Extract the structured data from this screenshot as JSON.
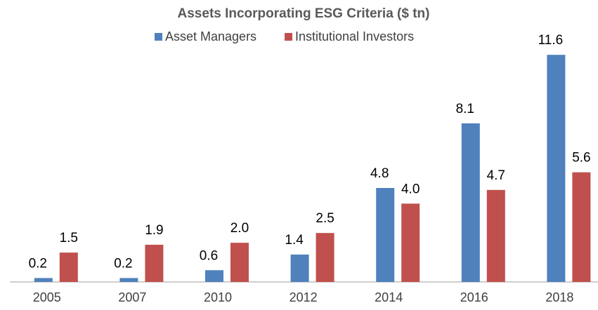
{
  "chart_data": {
    "type": "bar",
    "title": "Assets Incorporating ESG Criteria ($ tn)",
    "categories": [
      "2005",
      "2007",
      "2010",
      "2012",
      "2014",
      "2016",
      "2018"
    ],
    "series": [
      {
        "name": "Asset Managers",
        "color": "#4f81bd",
        "values": [
          0.2,
          0.2,
          0.6,
          1.4,
          4.8,
          8.1,
          11.6
        ],
        "value_labels": [
          "0.2",
          "0.2",
          "0.6",
          "1.4",
          "4.8",
          "8.1",
          "11.6"
        ]
      },
      {
        "name": "Institutional Investors",
        "color": "#c0504d",
        "values": [
          1.5,
          1.9,
          2.0,
          2.5,
          4.0,
          4.7,
          5.6
        ],
        "value_labels": [
          "1.5",
          "1.9",
          "2.0",
          "2.5",
          "4.0",
          "4.7",
          "5.6"
        ]
      }
    ],
    "ylim": [
      0,
      12
    ],
    "legend": "top"
  }
}
